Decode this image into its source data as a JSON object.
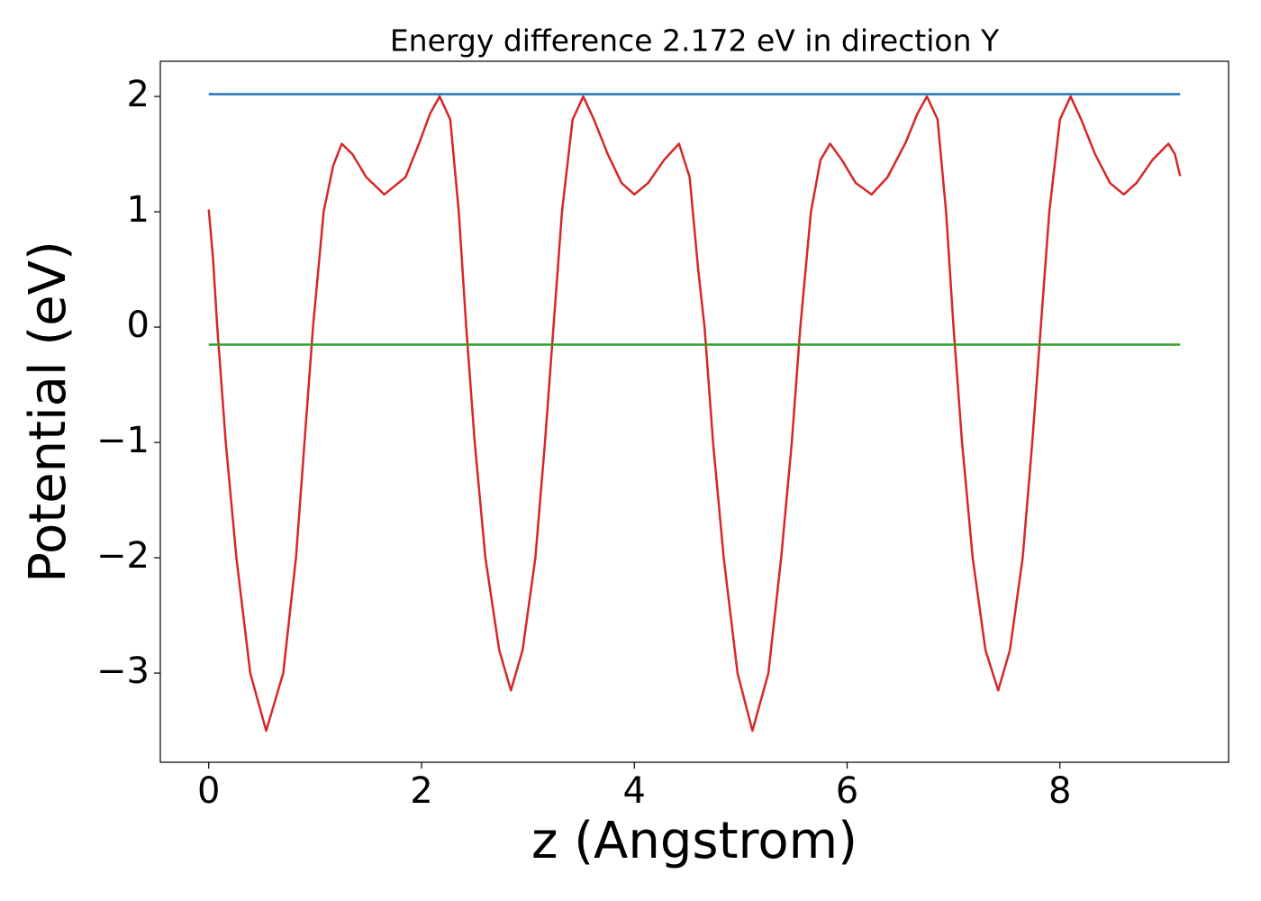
{
  "chart_data": {
    "type": "line",
    "title": "Energy difference 2.172 eV in direction Y",
    "xlabel": "z (Angstrom)",
    "ylabel": "Potential (eV)",
    "xlim": [
      -0.455,
      9.585
    ],
    "ylim": [
      -3.773,
      2.305
    ],
    "xticks": [
      0,
      2,
      4,
      6,
      8
    ],
    "yticks": [
      {
        "value": -3,
        "label": "−3"
      },
      {
        "value": -2,
        "label": "−2"
      },
      {
        "value": -1,
        "label": "−1"
      },
      0,
      1,
      2
    ],
    "grid": false,
    "series": [
      {
        "color": "#d62728",
        "x": [
          0,
          0.04,
          0.08,
          0.16,
          0.26,
          0.39,
          0.54,
          0.7,
          0.82,
          0.9,
          0.98,
          1.08,
          1.17,
          1.25,
          1.35,
          1.48,
          1.65,
          1.85,
          1.98,
          2.08,
          2.17,
          2.27,
          2.35,
          2.42,
          2.5,
          2.6,
          2.73,
          2.84,
          2.95,
          3.07,
          3.16,
          3.24,
          3.32,
          3.42,
          3.52,
          3.62,
          3.75,
          3.88,
          4.0,
          4.13,
          4.28,
          4.42,
          4.52,
          4.6,
          4.66,
          4.74,
          4.84,
          4.97,
          5.11,
          5.26,
          5.38,
          5.48,
          5.56,
          5.66,
          5.75,
          5.84,
          5.95,
          6.08,
          6.23,
          6.38,
          6.55,
          6.66,
          6.75,
          6.85,
          6.93,
          7.0,
          7.08,
          7.18,
          7.3,
          7.42,
          7.53,
          7.65,
          7.74,
          7.82,
          7.9,
          8.0,
          8.1,
          8.2,
          8.33,
          8.47,
          8.6,
          8.72,
          8.87,
          9.02,
          9.08,
          9.13
        ],
        "values": [
          1.02,
          0.6,
          0,
          -1,
          -2,
          -3,
          -3.5,
          -3,
          -2,
          -1,
          0,
          1,
          1.4,
          1.59,
          1.5,
          1.3,
          1.15,
          1.3,
          1.6,
          1.85,
          2.0,
          1.8,
          1.0,
          0,
          -1,
          -2,
          -2.8,
          -3.15,
          -2.8,
          -2,
          -1,
          0,
          1,
          1.8,
          2.0,
          1.8,
          1.5,
          1.25,
          1.15,
          1.25,
          1.45,
          1.59,
          1.3,
          0.5,
          0,
          -1,
          -2,
          -3,
          -3.5,
          -3,
          -2,
          -1,
          0,
          1,
          1.45,
          1.59,
          1.45,
          1.25,
          1.15,
          1.3,
          1.6,
          1.85,
          2.0,
          1.8,
          1.0,
          0,
          -1,
          -2,
          -2.8,
          -3.15,
          -2.8,
          -2,
          -1,
          0,
          1,
          1.8,
          2.0,
          1.8,
          1.5,
          1.25,
          1.15,
          1.25,
          1.45,
          1.59,
          1.5,
          1.31
        ]
      },
      {
        "color": "#1f77b4",
        "x": [
          0,
          9.13
        ],
        "values": [
          2.02,
          2.02
        ]
      },
      {
        "color": "#2ca02c",
        "x": [
          0,
          9.13
        ],
        "values": [
          -0.152,
          -0.152
        ]
      }
    ]
  }
}
